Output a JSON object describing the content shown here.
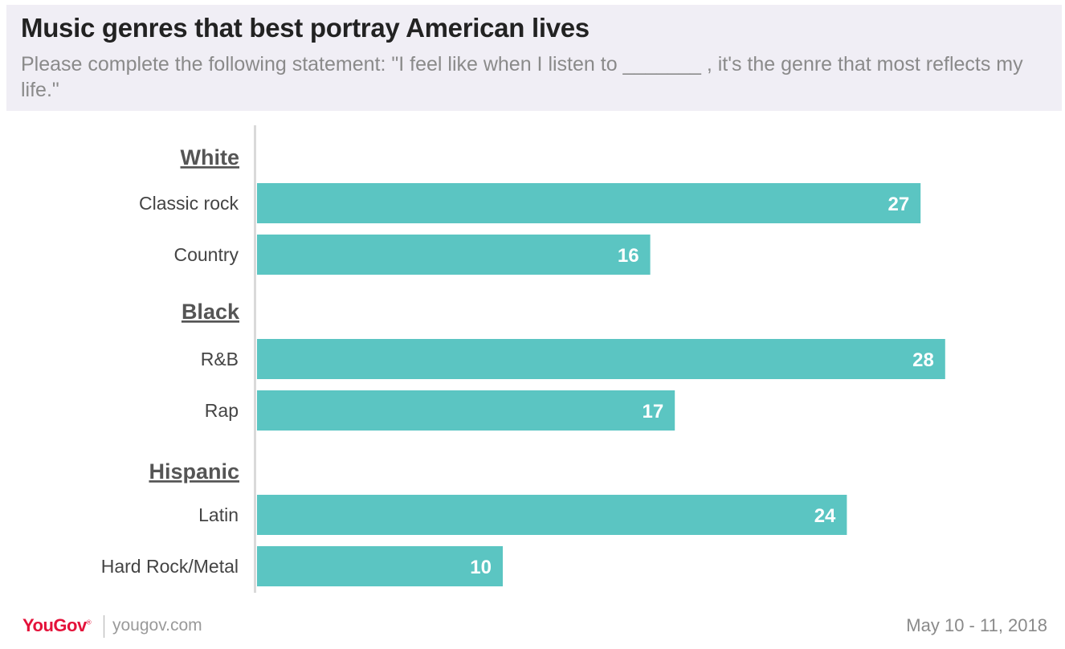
{
  "header": {
    "title": "Music genres that best portray American lives",
    "subtitle": "Please complete the following statement: \"I feel like when I listen to  _______ , it's the genre that most reflects my life.\""
  },
  "chart_data": {
    "type": "bar",
    "orientation": "horizontal",
    "groups": [
      {
        "name": "White",
        "categories": [
          "Classic rock",
          "Country"
        ],
        "values": [
          27,
          16
        ]
      },
      {
        "name": "Black",
        "categories": [
          "R&B",
          "Rap"
        ],
        "values": [
          28,
          17
        ]
      },
      {
        "name": "Hispanic",
        "categories": [
          "Latin",
          "Hard Rock/Metal"
        ],
        "values": [
          24,
          10
        ]
      }
    ],
    "xlim": [
      0,
      30
    ],
    "grid": false,
    "bar_color": "#5bc5c2",
    "label_color": "#ffffff"
  },
  "footer": {
    "brand": "YouGov",
    "url": "yougov.com",
    "date": "May 10 - 11, 2018"
  },
  "colors": {
    "header_bg": "#f0eef5",
    "brand_red": "#e4123a"
  }
}
